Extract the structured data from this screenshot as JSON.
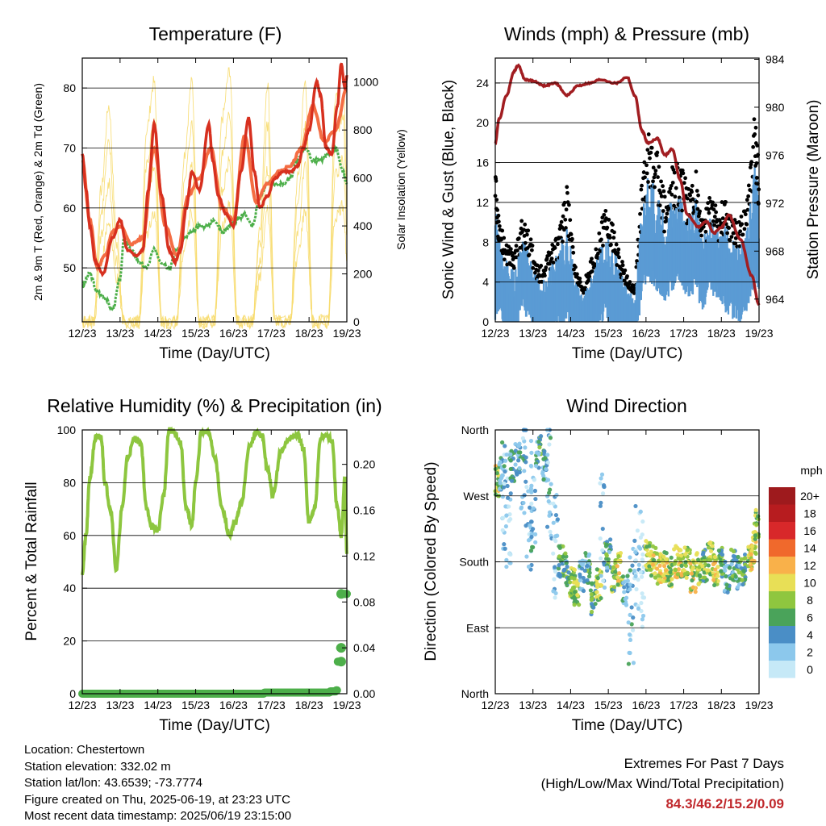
{
  "x_ticks": [
    "12/23",
    "13/23",
    "14/23",
    "15/23",
    "16/23",
    "17/23",
    "18/23",
    "19/23"
  ],
  "x_label": "Time (Day/UTC)",
  "colors": {
    "temp2m": "#d7301f",
    "temp9m": "#f46d43",
    "dew": "#4daf4a",
    "solar": "#f7dc6f",
    "rh": "#8dc63f",
    "rain": "#4daf4a",
    "wind": "#5a9bd4",
    "gust": "#000000",
    "pressure": "#a11d21"
  },
  "panels": {
    "temperature": {
      "title": "Temperature (F)",
      "ylabel_left": "2m & 9m T (Red, Orange) & 2m Td (Green)",
      "ylabel_right": "Solar Insolation (Yellow)",
      "left_ticks": [
        "50",
        "60",
        "70",
        "80"
      ],
      "right_ticks": [
        "0",
        "200",
        "400",
        "600",
        "800",
        "1000"
      ]
    },
    "wind": {
      "title": "Winds (mph) & Pressure (mb)",
      "ylabel_left": "Sonic Wind & Gust (Blue, Black)",
      "ylabel_right": "Station Pressure (Maroon)",
      "left_ticks": [
        "0",
        "4",
        "8",
        "12",
        "16",
        "20",
        "24"
      ],
      "right_ticks": [
        "964",
        "968",
        "972",
        "976",
        "980",
        "984"
      ]
    },
    "humidity": {
      "title": "Relative Humidity (%) & Precipitation (in)",
      "ylabel_left": "Percent & Total Rainfall",
      "left_ticks": [
        "0",
        "20",
        "40",
        "60",
        "80",
        "100"
      ],
      "right_ticks": [
        "0.00",
        "0.04",
        "0.08",
        "0.12",
        "0.16",
        "0.20"
      ]
    },
    "direction": {
      "title": "Wind Direction",
      "ylabel_left": "Direction (Colored By Speed)",
      "left_ticks": [
        "North",
        "East",
        "South",
        "West",
        "North"
      ],
      "legend_title": "mph",
      "legend_labels": [
        "0",
        "2",
        "4",
        "6",
        "8",
        "10",
        "12",
        "14",
        "16",
        "18",
        "20+"
      ],
      "legend_colors": [
        "#c6e9f7",
        "#8cc8ec",
        "#4a8ec6",
        "#4aa35a",
        "#8fc63f",
        "#e8df56",
        "#f9b14a",
        "#f0692c",
        "#d8282a",
        "#b71c1f",
        "#9e1a1d"
      ]
    }
  },
  "chart_data": [
    {
      "type": "line",
      "title": "Temperature (F)",
      "xlabel": "Time (Day/UTC)",
      "ylabel": "2m & 9m T (Red, Orange) & 2m Td (Green)",
      "ylim": [
        41,
        85
      ],
      "y2label": "Solar Insolation (Yellow)",
      "y2lim": [
        0,
        1100
      ],
      "xlim": [
        12,
        19
      ],
      "series": [
        {
          "name": "2m T",
          "x": [
            12.0,
            12.1,
            12.2,
            12.35,
            12.55,
            12.8,
            13.0,
            13.2,
            13.45,
            13.6,
            13.75,
            13.9,
            14.1,
            14.3,
            14.45,
            14.6,
            14.75,
            14.9,
            15.1,
            15.35,
            15.45,
            15.6,
            15.8,
            16.0,
            16.2,
            16.4,
            16.55,
            16.7,
            16.9,
            17.1,
            17.3,
            17.5,
            17.7,
            17.85,
            18.0,
            18.2,
            18.3,
            18.45,
            18.6,
            18.75,
            18.85,
            18.95,
            19.0
          ],
          "y": [
            69,
            63,
            57,
            51,
            49,
            55,
            58,
            53,
            52,
            53,
            63,
            74,
            62,
            53,
            51,
            53,
            60,
            66,
            63,
            74,
            68,
            62,
            59,
            57,
            66,
            75,
            66,
            60,
            62,
            65,
            66,
            66,
            67,
            70,
            73,
            81,
            79,
            70,
            69,
            77,
            84,
            80,
            82
          ]
        },
        {
          "name": "9m T",
          "x": [
            12.0,
            12.2,
            12.4,
            12.6,
            12.8,
            13.0,
            13.3,
            13.6,
            13.9,
            14.2,
            14.5,
            14.8,
            15.1,
            15.4,
            15.7,
            16.0,
            16.3,
            16.6,
            16.9,
            17.2,
            17.5,
            17.8,
            18.1,
            18.4,
            18.7,
            19.0
          ],
          "y": [
            68,
            58,
            50,
            52,
            56,
            57,
            54,
            55,
            70,
            57,
            52,
            62,
            65,
            70,
            60,
            58,
            72,
            61,
            64,
            66,
            67,
            70,
            77,
            71,
            73,
            80
          ]
        },
        {
          "name": "2m Td",
          "x": [
            12.0,
            12.2,
            12.4,
            12.6,
            12.8,
            13.0,
            13.1,
            13.3,
            13.5,
            13.7,
            13.9,
            14.1,
            14.3,
            14.5,
            14.7,
            14.9,
            15.1,
            15.3,
            15.5,
            15.7,
            15.9,
            16.1,
            16.3,
            16.5,
            16.7,
            16.9,
            17.1,
            17.3,
            17.5,
            17.7,
            17.9,
            18.1,
            18.3,
            18.5,
            18.7,
            18.9,
            19.0
          ],
          "y": [
            47,
            49,
            46,
            45,
            43,
            48,
            55,
            53,
            51,
            50,
            53,
            51,
            50,
            53,
            55,
            56,
            57,
            57,
            58,
            56,
            57,
            58,
            59,
            57,
            62,
            64,
            64,
            64,
            65,
            68,
            70,
            68,
            68,
            69,
            70,
            66,
            64
          ]
        },
        {
          "name": "Solar",
          "x": [
            12.0,
            12.3,
            12.5,
            12.7,
            12.9,
            13.1,
            13.5,
            13.7,
            13.9,
            14.1,
            14.5,
            14.7,
            14.9,
            15.1,
            15.5,
            15.7,
            15.9,
            16.1,
            16.5,
            16.7,
            16.9,
            17.1,
            17.5,
            17.7,
            17.9,
            18.1,
            18.5,
            18.7,
            18.9,
            19.0
          ],
          "y": [
            0,
            0,
            550,
            900,
            400,
            0,
            0,
            800,
            1000,
            0,
            0,
            700,
            1000,
            0,
            0,
            850,
            1050,
            0,
            0,
            400,
            1000,
            0,
            0,
            600,
            1000,
            0,
            0,
            950,
            1050,
            600
          ]
        }
      ]
    },
    {
      "type": "line",
      "title": "Winds (mph) & Pressure (mb)",
      "xlabel": "Time (Day/UTC)",
      "ylabel": "Sonic Wind & Gust (Blue, Black)",
      "ylim": [
        0,
        26.5
      ],
      "y2label": "Station Pressure (Maroon)",
      "y2lim": [
        962.1,
        984.1
      ],
      "xlim": [
        12,
        19
      ],
      "series": [
        {
          "name": "Pressure",
          "x": [
            12.0,
            12.1,
            12.3,
            12.5,
            12.6,
            12.8,
            13.0,
            13.3,
            13.6,
            13.9,
            14.2,
            14.5,
            14.8,
            15.2,
            15.5,
            15.7,
            15.9,
            16.05,
            16.3,
            16.5,
            16.7,
            16.9,
            17.1,
            17.4,
            17.6,
            17.8,
            18.0,
            18.2,
            18.5,
            18.8,
            19.0
          ],
          "y": [
            977,
            979,
            981,
            983,
            983.5,
            982.3,
            982.2,
            981.8,
            982,
            981,
            981.8,
            982,
            982.3,
            982,
            982.5,
            981,
            978,
            977,
            977.4,
            976,
            976.5,
            974,
            971,
            970,
            970.5,
            969.5,
            970,
            971,
            969,
            966,
            963.5
          ]
        },
        {
          "name": "Wind",
          "x": [
            12.0,
            12.1,
            12.3,
            12.5,
            12.7,
            12.9,
            13.1,
            13.3,
            13.5,
            13.7,
            13.9,
            14.1,
            14.3,
            14.5,
            14.7,
            14.9,
            15.1,
            15.3,
            15.5,
            15.7,
            15.9,
            16.1,
            16.3,
            16.5,
            16.7,
            16.9,
            17.1,
            17.3,
            17.5,
            17.7,
            17.9,
            18.1,
            18.3,
            18.5,
            18.7,
            18.9,
            19.0
          ],
          "y": [
            5,
            6,
            3,
            2,
            6,
            5,
            2,
            2,
            3,
            4,
            5,
            3,
            1,
            2,
            4,
            5,
            4,
            3,
            1,
            1,
            8,
            9,
            8,
            7,
            8,
            9,
            7,
            8,
            6,
            8,
            7,
            6,
            5,
            5,
            6,
            9,
            8
          ]
        },
        {
          "name": "Gust",
          "x": [
            12.0,
            12.1,
            12.3,
            12.5,
            12.7,
            12.9,
            13.1,
            13.3,
            13.5,
            13.7,
            13.9,
            14.1,
            14.3,
            14.5,
            14.7,
            14.9,
            15.1,
            15.3,
            15.5,
            15.7,
            15.9,
            16.1,
            16.3,
            16.5,
            16.7,
            16.9,
            17.1,
            17.3,
            17.5,
            17.7,
            17.9,
            18.1,
            18.3,
            18.5,
            18.7,
            18.9,
            19.0
          ],
          "y": [
            14,
            9,
            7,
            6,
            9,
            8,
            5,
            5,
            7,
            8,
            12,
            6,
            3,
            5,
            7,
            10,
            9,
            6,
            4,
            3,
            13,
            17,
            15,
            11,
            14,
            14,
            12,
            14,
            9,
            11,
            10,
            11,
            9,
            9,
            11,
            19,
            13
          ]
        }
      ]
    },
    {
      "type": "line",
      "title": "Relative Humidity (%) & Precipitation (in)",
      "xlabel": "Time (Day/UTC)",
      "ylabel": "Percent & Total Rainfall",
      "ylim": [
        0,
        100
      ],
      "y2lim": [
        0,
        0.23
      ],
      "xlim": [
        12,
        19
      ],
      "series": [
        {
          "name": "RH",
          "x": [
            12.0,
            12.1,
            12.2,
            12.35,
            12.5,
            12.6,
            12.75,
            12.9,
            13.05,
            13.2,
            13.4,
            13.55,
            13.7,
            13.85,
            14.0,
            14.15,
            14.3,
            14.45,
            14.6,
            14.75,
            14.9,
            15.0,
            15.15,
            15.35,
            15.5,
            15.7,
            15.9,
            16.05,
            16.2,
            16.45,
            16.6,
            16.75,
            16.9,
            17.05,
            17.25,
            17.5,
            17.7,
            17.85,
            18.0,
            18.15,
            18.3,
            18.45,
            18.6,
            18.75,
            18.85,
            18.95,
            19.0
          ],
          "y": [
            46,
            60,
            82,
            97,
            97,
            80,
            70,
            47,
            70,
            90,
            97,
            95,
            70,
            63,
            62,
            75,
            100,
            99,
            95,
            70,
            64,
            80,
            99,
            99,
            90,
            70,
            60,
            65,
            72,
            95,
            99,
            98,
            85,
            75,
            92,
            97,
            98,
            93,
            65,
            70,
            97,
            98,
            96,
            70,
            60,
            82,
            53
          ]
        },
        {
          "name": "Precip",
          "x": [
            12.0,
            16.75,
            16.8,
            18.0,
            18.55,
            18.7,
            18.75,
            18.8,
            18.85,
            19.0
          ],
          "y": [
            0.0,
            0.0,
            0.001,
            0.001,
            0.002,
            0.003,
            0.028,
            0.04,
            0.087,
            0.087
          ]
        }
      ]
    },
    {
      "type": "scatter",
      "title": "Wind Direction",
      "xlabel": "Time (Day/UTC)",
      "ylabel": "Direction (Colored By Speed)",
      "yticks": [
        "North",
        "East",
        "South",
        "West",
        "North"
      ],
      "ylim": [
        0,
        360
      ],
      "xlim": [
        12,
        19
      ],
      "series": [
        {
          "name": "Direction",
          "x": [
            12.05,
            12.15,
            12.25,
            12.35,
            12.45,
            12.6,
            12.75,
            12.9,
            13.0,
            13.15,
            13.3,
            13.45,
            13.6,
            13.75,
            13.9,
            14.05,
            14.15,
            14.3,
            14.45,
            14.6,
            14.75,
            14.85,
            15.0,
            15.15,
            15.3,
            15.45,
            15.6,
            15.75,
            15.9,
            16.05,
            16.2,
            16.35,
            16.5,
            16.65,
            16.8,
            16.95,
            17.1,
            17.25,
            17.4,
            17.55,
            17.7,
            17.85,
            18.0,
            18.15,
            18.3,
            18.45,
            18.6,
            18.75,
            18.85,
            18.95
          ],
          "y": [
            290,
            300,
            270,
            250,
            310,
            320,
            300,
            240,
            270,
            330,
            310,
            290,
            200,
            180,
            170,
            150,
            140,
            160,
            170,
            130,
            150,
            220,
            190,
            160,
            170,
            140,
            120,
            180,
            170,
            190,
            180,
            170,
            175,
            165,
            180,
            175,
            180,
            160,
            170,
            175,
            185,
            170,
            180,
            160,
            175,
            165,
            170,
            190,
            200,
            230
          ],
          "speed": [
            9,
            4,
            3,
            2,
            4,
            4,
            3,
            2,
            3,
            5,
            4,
            3,
            2,
            6,
            5,
            7,
            8,
            4,
            5,
            6,
            8,
            2,
            5,
            7,
            9,
            4,
            3,
            2,
            1,
            8,
            9,
            10,
            9,
            8,
            10,
            9,
            8,
            9,
            8,
            7,
            8,
            9,
            6,
            4,
            5,
            5,
            6,
            9,
            10,
            8
          ]
        }
      ]
    }
  ],
  "info": {
    "location": "Location: Chestertown",
    "elevation": "Station elevation: 332.02 m",
    "latlon": "Station lat/lon: 43.6539; -73.7774",
    "created": "Figure created on Thu, 2025-06-19, at 23:23 UTC",
    "recent": "Most recent data timestamp: 2025/06/19 23:15:00"
  },
  "extremes": {
    "title": "Extremes For Past 7 Days",
    "subtitle": "(High/Low/Max Wind/Total Precipitation)",
    "values": "84.3/46.2/15.2/0.09"
  }
}
